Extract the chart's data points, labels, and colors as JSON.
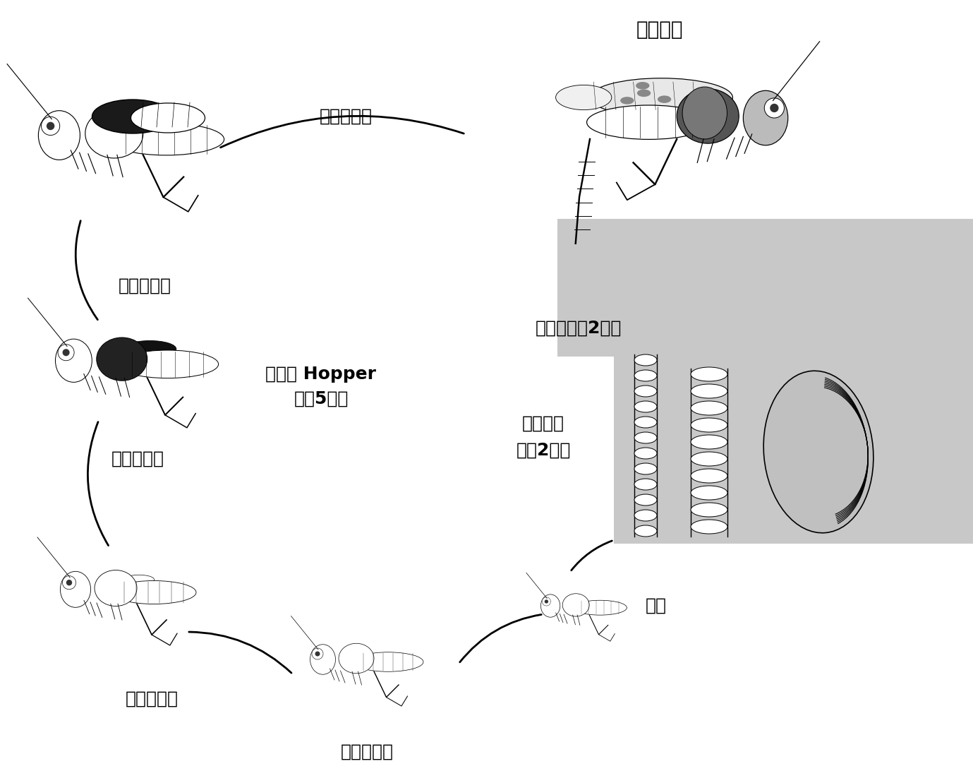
{
  "bg_color": "#ffffff",
  "gray_color": "#c8c8c8",
  "black": "#000000",
  "labels": {
    "adult_laying": "成虫产卵",
    "adult_period": "成虫期（约2周）",
    "molt5": "第五次换羽",
    "molt4": "第四次换羽",
    "molt3": "第三次换羽",
    "molt2": "第二次换羽",
    "molt1": "第一次换羽",
    "hopper_line1": "若虫期 Hopper",
    "hopper_line2": "（约5周）",
    "egg_line1": "孵化虫卵",
    "egg_line2": "（约2周）",
    "larva": "幼虫"
  },
  "figsize": [
    13.79,
    11.09
  ],
  "dpi": 100,
  "label_fontsize": 18
}
